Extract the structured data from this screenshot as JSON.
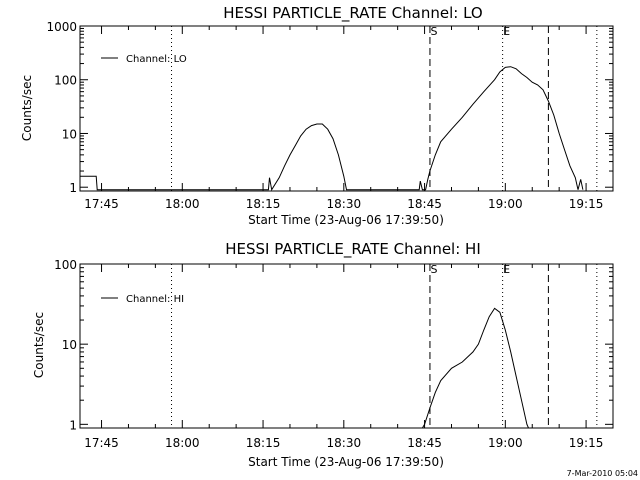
{
  "footer": {
    "timestamp": "7-Mar-2010 05:04"
  },
  "chart_data": [
    {
      "type": "line",
      "title": "HESSI PARTICLE_RATE Channel: LO",
      "xlabel": "Start Time (23-Aug-06 17:39:50)",
      "ylabel": "Counts/sec",
      "y_scale": "log",
      "xlim": [
        "17:41",
        "19:20"
      ],
      "ylim": [
        0.85,
        1000
      ],
      "x_ticks": [
        "17:45",
        "18:00",
        "18:15",
        "18:30",
        "18:45",
        "19:00",
        "19:15"
      ],
      "y_ticks": [
        "1",
        "10",
        "100",
        "1000"
      ],
      "legend": {
        "placement": "top-left",
        "entries": [
          "Channel: LO"
        ]
      },
      "markers": [
        {
          "label": "S",
          "time": "18:46",
          "style": "dashed"
        },
        {
          "label": "E",
          "time": "18:59.5",
          "style": "dotted"
        },
        {
          "label": "",
          "time": "19:08",
          "style": "dashed"
        },
        {
          "label": "",
          "time": "19:17",
          "style": "dotted"
        },
        {
          "label": "",
          "time": "17:58",
          "style": "dotted"
        }
      ],
      "series": [
        {
          "name": "Channel: LO",
          "points": [
            [
              "17:41",
              1.6
            ],
            [
              "17:44",
              1.6
            ],
            [
              "17:44.2",
              0.9
            ],
            [
              "18:16",
              0.9
            ],
            [
              "18:16.2",
              1.5
            ],
            [
              "18:16.6",
              0.9
            ],
            [
              "18:18",
              1.5
            ],
            [
              "18:19",
              2.5
            ],
            [
              "18:20",
              4
            ],
            [
              "18:21",
              6
            ],
            [
              "18:22",
              9
            ],
            [
              "18:23",
              12
            ],
            [
              "18:24",
              14
            ],
            [
              "18:25",
              15
            ],
            [
              "18:26",
              15
            ],
            [
              "18:27",
              12
            ],
            [
              "18:28",
              8
            ],
            [
              "18:29",
              4
            ],
            [
              "18:30",
              1.6
            ],
            [
              "18:30.5",
              0.9
            ],
            [
              "18:44",
              0.9
            ],
            [
              "18:44.2",
              1.3
            ],
            [
              "18:44.6",
              0.9
            ],
            [
              "18:45.2",
              0.9
            ],
            [
              "18:45.6",
              1.4
            ],
            [
              "18:46",
              2
            ],
            [
              "18:47",
              4
            ],
            [
              "18:48",
              7
            ],
            [
              "18:50",
              12
            ],
            [
              "18:52",
              20
            ],
            [
              "18:54",
              35
            ],
            [
              "18:56",
              60
            ],
            [
              "18:58",
              100
            ],
            [
              "18:59",
              140
            ],
            [
              "19:00",
              170
            ],
            [
              "19:01",
              175
            ],
            [
              "19:02",
              160
            ],
            [
              "19:03",
              130
            ],
            [
              "19:04",
              110
            ],
            [
              "19:05",
              90
            ],
            [
              "19:06",
              80
            ],
            [
              "19:07",
              65
            ],
            [
              "19:08",
              40
            ],
            [
              "19:09",
              22
            ],
            [
              "19:10",
              10
            ],
            [
              "19:11",
              5
            ],
            [
              "19:12",
              2.5
            ],
            [
              "19:13",
              1.5
            ],
            [
              "19:13.5",
              0.9
            ],
            [
              "19:14",
              1.4
            ],
            [
              "19:14.4",
              0.9
            ]
          ]
        }
      ]
    },
    {
      "type": "line",
      "title": "HESSI PARTICLE_RATE Channel: HI",
      "xlabel": "Start Time (23-Aug-06 17:39:50)",
      "ylabel": "Counts/sec",
      "y_scale": "log",
      "xlim": [
        "17:41",
        "19:20"
      ],
      "ylim": [
        0.9,
        100
      ],
      "x_ticks": [
        "17:45",
        "18:00",
        "18:15",
        "18:30",
        "18:45",
        "19:00",
        "19:15"
      ],
      "y_ticks": [
        "1",
        "10",
        "100"
      ],
      "legend": {
        "placement": "top-left",
        "entries": [
          "Channel: HI"
        ]
      },
      "markers": [
        {
          "label": "S",
          "time": "18:46",
          "style": "dashed"
        },
        {
          "label": "E",
          "time": "18:59.5",
          "style": "dotted"
        },
        {
          "label": "",
          "time": "19:08",
          "style": "dashed"
        },
        {
          "label": "",
          "time": "19:17",
          "style": "dotted"
        },
        {
          "label": "",
          "time": "17:58",
          "style": "dotted"
        }
      ],
      "series": [
        {
          "name": "Channel: HI",
          "points": [
            [
              "18:44.6",
              0.9
            ],
            [
              "18:45",
              1.0
            ],
            [
              "18:46",
              1.6
            ],
            [
              "18:47",
              2.5
            ],
            [
              "18:48",
              3.5
            ],
            [
              "18:50",
              5
            ],
            [
              "18:52",
              6
            ],
            [
              "18:54",
              8
            ],
            [
              "18:55",
              10
            ],
            [
              "18:56",
              15
            ],
            [
              "18:57",
              22
            ],
            [
              "18:58",
              28
            ],
            [
              "18:59",
              25
            ],
            [
              "19:00",
              15
            ],
            [
              "19:01",
              8
            ],
            [
              "19:02",
              4
            ],
            [
              "19:03",
              2
            ],
            [
              "19:04",
              1
            ],
            [
              "19:04.3",
              0.9
            ]
          ]
        }
      ]
    }
  ]
}
